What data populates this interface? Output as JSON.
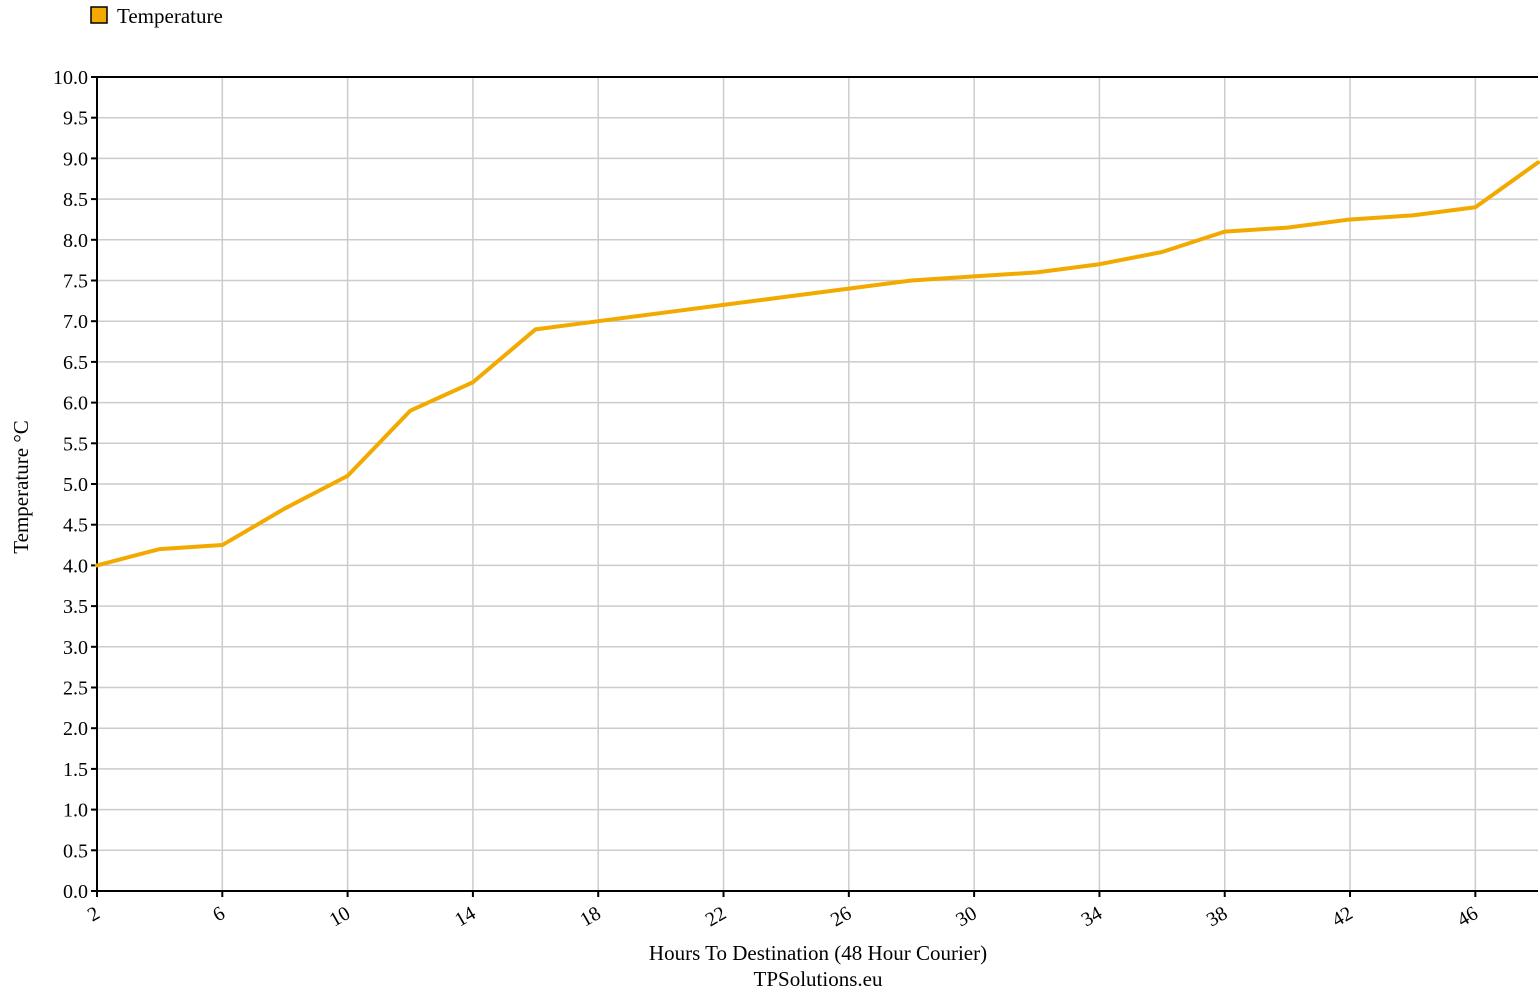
{
  "chart_data": {
    "type": "line",
    "title": "",
    "xlabel": "Hours To Destination (48 Hour Courier)",
    "ylabel": "Temperature °C",
    "credit": "TPSolutions.eu",
    "legend": {
      "placement": "top-left",
      "entries": [
        "Temperature"
      ]
    },
    "grid": true,
    "xlim": [
      2,
      48
    ],
    "ylim": [
      0,
      10
    ],
    "x_ticks": [
      2,
      6,
      10,
      14,
      18,
      22,
      26,
      30,
      34,
      38,
      42,
      46
    ],
    "x_tick_labels": [
      "2",
      "6",
      "10",
      "14",
      "18",
      "22",
      "26",
      "30",
      "34",
      "38",
      "42",
      "46"
    ],
    "y_ticks": [
      0.0,
      0.5,
      1.0,
      1.5,
      2.0,
      2.5,
      3.0,
      3.5,
      4.0,
      4.5,
      5.0,
      5.5,
      6.0,
      6.5,
      7.0,
      7.5,
      8.0,
      8.5,
      9.0,
      9.5,
      10.0
    ],
    "y_tick_labels": [
      "0.0",
      "0.5",
      "1.0",
      "1.5",
      "2.0",
      "2.5",
      "3.0",
      "3.5",
      "4.0",
      "4.5",
      "5.0",
      "5.5",
      "6.0",
      "6.5",
      "7.0",
      "7.5",
      "8.0",
      "8.5",
      "9.0",
      "9.5",
      "10.0"
    ],
    "series": [
      {
        "name": "Temperature",
        "color": "#f2a900",
        "x": [
          2,
          4,
          6,
          8,
          10,
          12,
          14,
          16,
          18,
          20,
          22,
          24,
          26,
          28,
          30,
          32,
          34,
          36,
          38,
          40,
          42,
          44,
          46,
          48
        ],
        "values": [
          4.0,
          4.2,
          4.25,
          4.7,
          5.1,
          5.9,
          6.25,
          6.9,
          7.0,
          7.1,
          7.2,
          7.3,
          7.4,
          7.5,
          7.55,
          7.6,
          7.7,
          7.85,
          8.1,
          8.15,
          8.25,
          8.3,
          8.4,
          8.95
        ]
      }
    ]
  }
}
